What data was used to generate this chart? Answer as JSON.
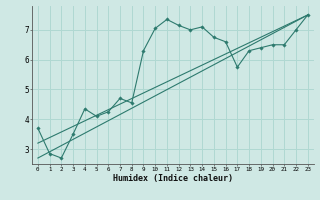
{
  "xlabel": "Humidex (Indice chaleur)",
  "ylabel": "",
  "bg_color": "#cfe8e4",
  "grid_color": "#b0d8d2",
  "line_color": "#2d7a6e",
  "xlim": [
    -0.5,
    23.5
  ],
  "ylim": [
    2.5,
    7.8
  ],
  "xticks": [
    0,
    1,
    2,
    3,
    4,
    5,
    6,
    7,
    8,
    9,
    10,
    11,
    12,
    13,
    14,
    15,
    16,
    17,
    18,
    19,
    20,
    21,
    22,
    23
  ],
  "yticks": [
    3,
    4,
    5,
    6,
    7
  ],
  "main_line_x": [
    0,
    1,
    2,
    3,
    4,
    5,
    6,
    7,
    8,
    9,
    10,
    11,
    12,
    13,
    14,
    15,
    16,
    17,
    18,
    19,
    20,
    21,
    22,
    23
  ],
  "main_line_y": [
    3.7,
    2.85,
    2.7,
    3.5,
    4.35,
    4.1,
    4.25,
    4.7,
    4.55,
    6.3,
    7.05,
    7.35,
    7.15,
    7.0,
    7.1,
    6.75,
    6.6,
    5.75,
    6.3,
    6.4,
    6.5,
    6.5,
    7.0,
    7.5
  ],
  "trend1_x": [
    0,
    23
  ],
  "trend1_y": [
    3.2,
    7.5
  ],
  "trend2_x": [
    0,
    23
  ],
  "trend2_y": [
    2.7,
    7.5
  ]
}
